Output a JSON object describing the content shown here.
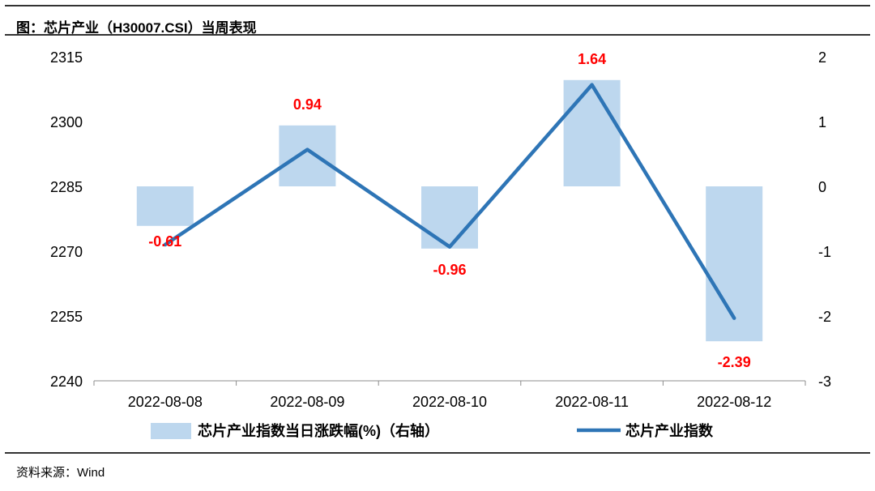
{
  "header": {
    "title": "图：芯片产业（H30007.CSI）当周表现"
  },
  "footer": {
    "source": "资料来源：Wind"
  },
  "chart_data": {
    "type": "bar",
    "categories": [
      "2022-08-08",
      "2022-08-09",
      "2022-08-10",
      "2022-08-11",
      "2022-08-12"
    ],
    "series": [
      {
        "name": "芯片产业指数当日涨跌幅(%)（右轴）",
        "type": "bar",
        "axis": "right",
        "values": [
          -0.61,
          0.94,
          -0.96,
          1.64,
          -2.39
        ],
        "labels": [
          "-0.61",
          "0.94",
          "-0.96",
          "1.64",
          "-2.39"
        ],
        "color": "#bdd7ee"
      },
      {
        "name": "芯片产业指数",
        "type": "line",
        "axis": "left",
        "values": [
          2271.5,
          2293.5,
          2271.0,
          2308.5,
          2254.5
        ],
        "color": "#2e75b6"
      }
    ],
    "y_left": {
      "ylim": [
        2240,
        2315
      ],
      "ticks": [
        "2315",
        "2300",
        "2285",
        "2270",
        "2255",
        "2240"
      ]
    },
    "y_right": {
      "ylim": [
        -3,
        2
      ],
      "ticks": [
        "2",
        "1",
        "0",
        "-1",
        "-2",
        "-3"
      ]
    },
    "data_label_color": "#ff0000",
    "grid": false,
    "legend_position": "bottom"
  }
}
